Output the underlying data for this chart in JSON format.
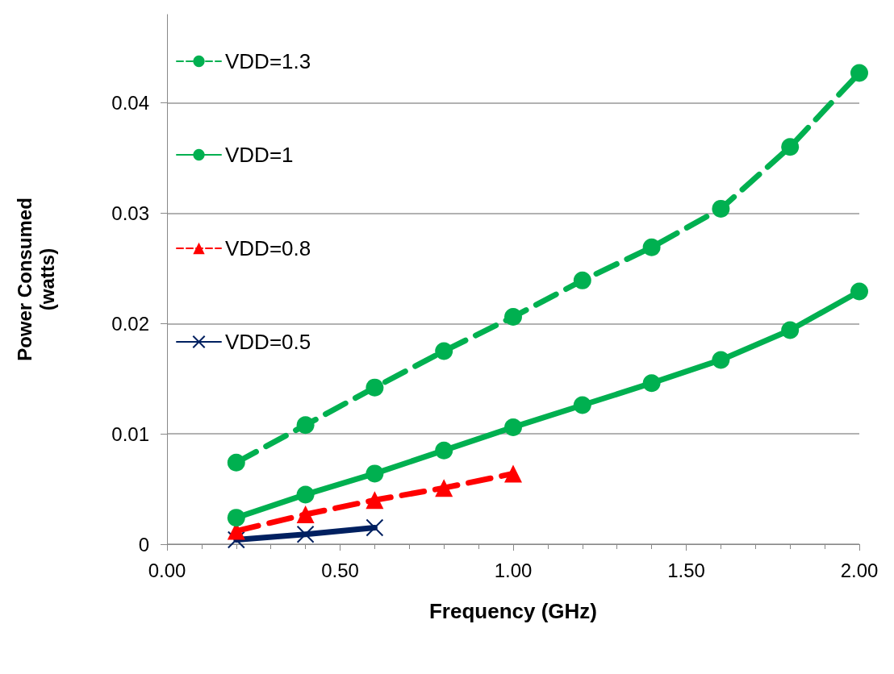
{
  "chart_data": {
    "type": "line",
    "xlabel": "Frequency (GHz)",
    "ylabel": "Power Consumed\n(watts)",
    "xlim": [
      0,
      2
    ],
    "xticks": [
      {
        "value": 0,
        "label": "0.00"
      },
      {
        "value": 0.5,
        "label": "0.50"
      },
      {
        "value": 1,
        "label": "1.00"
      },
      {
        "value": 1.5,
        "label": "1.50"
      },
      {
        "value": 2,
        "label": "2.00"
      }
    ],
    "ylim": [
      0,
      0.048
    ],
    "yticks": [
      0,
      0.01,
      0.02,
      0.03,
      0.04
    ],
    "grid": "y",
    "legend": "top left",
    "series": [
      {
        "name": "VDD=1.3",
        "color": "#00b050",
        "marker": "circle",
        "line_style": "dashed",
        "x": [
          0.2,
          0.4,
          0.6,
          0.8,
          1.0,
          1.2,
          1.4,
          1.6,
          1.8,
          2.0
        ],
        "values": [
          0.0074,
          0.0108,
          0.0142,
          0.0175,
          0.0206,
          0.0239,
          0.0269,
          0.0304,
          0.036,
          0.0427
        ]
      },
      {
        "name": "VDD=1",
        "color": "#00b050",
        "marker": "circle",
        "line_style": "solid",
        "x": [
          0.2,
          0.4,
          0.6,
          0.8,
          1.0,
          1.2,
          1.4,
          1.6,
          1.8,
          2.0
        ],
        "values": [
          0.0024,
          0.0045,
          0.0064,
          0.0085,
          0.0106,
          0.0126,
          0.0146,
          0.0167,
          0.0194,
          0.0229
        ]
      },
      {
        "name": "VDD=0.8",
        "color": "#ff0000",
        "marker": "triangle",
        "line_style": "dashed",
        "x": [
          0.2,
          0.4,
          0.6,
          0.8,
          1.0
        ],
        "values": [
          0.0012,
          0.0027,
          0.004,
          0.0051,
          0.0064
        ]
      },
      {
        "name": "VDD=0.5",
        "color": "#002060",
        "marker": "cross",
        "line_style": "solid",
        "x": [
          0.2,
          0.4,
          0.6
        ],
        "values": [
          0.0004,
          0.0009,
          0.0015
        ]
      }
    ]
  }
}
